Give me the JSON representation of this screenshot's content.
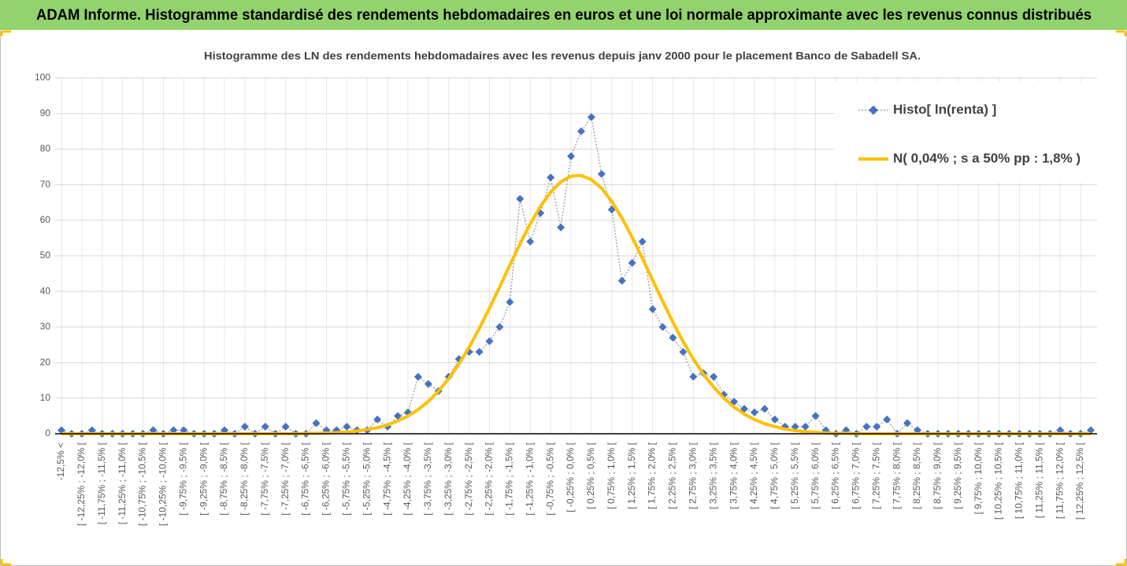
{
  "chart_data": {
    "type": "line",
    "banner": "ADAM Informe. Histogramme standardisé des rendements hebdomadaires en euros et une loi normale approximante avec les revenus connus distribués",
    "title": "Histogramme  des LN des rendements hebdomadaires avec les revenus depuis janv 2000 pour le placement Banco de Sabadell SA.",
    "categories": [
      "-12,5% <",
      null,
      "[ -12,25% ; -12,0% [",
      null,
      "[ -11,75% ; -11,5% [",
      null,
      "[ -11,25% ; -11,0% [",
      null,
      "[ -10,75% ; -10,5% [",
      null,
      "[ -10,25% ; -10,0% [",
      null,
      "[ -9,75% ; -9,5% [",
      null,
      "[ -9,25% ; -9,0% [",
      null,
      "[ -8,75% ; -8,5% [",
      null,
      "[ -8,25% ; -8,0% [",
      null,
      "[ -7,75% ; -7,5% [",
      null,
      "[ -7,25% ; -7,0% [",
      null,
      "[ -6,75% ; -6,5% [",
      null,
      "[ -6,25% ; -6,0% [",
      null,
      "[ -5,75% ; -5,5% [",
      null,
      "[ -5,25% ; -5,0% [",
      null,
      "[ -4,75% ; -4,5% [",
      null,
      "[ -4,25% ; -4,0% [",
      null,
      "[ -3,75% ; -3,5% [",
      null,
      "[ -3,25% ; -3,0% [",
      null,
      "[ -2,75% ; -2,5% [",
      null,
      "[ -2,25% ; -2,0% [",
      null,
      "[ -1,75% ; -1,5% [",
      null,
      "[ -1,25% ; -1,0% [",
      null,
      "[ -0,75% ; -0,5% [",
      null,
      "[ -0,25% ; 0,0% [",
      null,
      "[ 0,25% ; 0,5% [",
      null,
      "[ 0,75% ; 1,0% [",
      null,
      "[ 1,25% ; 1,5% [",
      null,
      "[ 1,75% ; 2,0% [",
      null,
      "[ 2,25% ; 2,5% [",
      null,
      "[ 2,75% ; 3,0% [",
      null,
      "[ 3,25% ; 3,5% [",
      null,
      "[ 3,75% ; 4,0% [",
      null,
      "[ 4,25% ; 4,5% [",
      null,
      "[ 4,75% ; 5,0% [",
      null,
      "[ 5,25% ; 5,5% [",
      null,
      "[ 5,75% ; 6,0% [",
      null,
      "[ 6,25% ; 6,5% [",
      null,
      "[ 6,75% ; 7,0% [",
      null,
      "[ 7,25% ; 7,5% [",
      null,
      "[ 7,75% ; 8,0% [",
      null,
      "[ 8,25% ; 8,5% [",
      null,
      "[ 8,75% ; 9,0% [",
      null,
      "[ 9,25% ; 9,5% [",
      null,
      "[ 9,75% ; 10,0% [",
      null,
      "[ 10,25% ; 10,5% [",
      null,
      "[ 10,75% ; 11,0% [",
      null,
      "[ 11,25% ; 11,5% [",
      null,
      "[ 11,75% ; 12,0% [",
      null,
      "[ 12,25% ; 12,5% [",
      null
    ],
    "series": [
      {
        "name": "Histo[ ln(renta) ]",
        "color": "#4472c4",
        "line_color": "#a6a6a6",
        "marker": "diamond",
        "values": [
          1,
          0,
          0,
          1,
          0,
          0,
          0,
          0,
          0,
          1,
          0,
          1,
          1,
          0,
          0,
          0,
          1,
          0,
          2,
          0,
          2,
          0,
          2,
          0,
          0,
          3,
          1,
          1,
          2,
          1,
          1,
          4,
          2,
          5,
          6,
          16,
          14,
          12,
          16,
          21,
          23,
          23,
          26,
          30,
          37,
          66,
          54,
          62,
          72,
          58,
          78,
          85,
          89,
          73,
          63,
          43,
          48,
          54,
          35,
          30,
          27,
          23,
          16,
          17,
          16,
          11,
          9,
          7,
          6,
          7,
          4,
          2,
          2,
          2,
          5,
          1,
          0,
          1,
          0,
          2,
          2,
          4,
          0,
          3,
          1,
          0,
          0,
          0,
          0,
          0,
          0,
          0,
          0,
          0,
          0,
          0,
          0,
          0,
          1,
          0,
          0,
          1
        ]
      },
      {
        "name": "N( 0,04% ; s a 50% pp : 1,8% )",
        "color": "#ffc000",
        "marker": "none",
        "values": [
          0,
          0,
          0,
          0,
          0,
          0,
          0,
          0,
          0,
          0,
          0,
          0,
          0,
          0,
          0,
          0,
          0,
          0,
          0,
          0,
          0,
          0,
          0,
          0,
          0.1,
          0.1,
          0.2,
          0.3,
          0.5,
          0.8,
          1.2,
          1.7,
          2.5,
          3.6,
          5.0,
          6.8,
          9.1,
          12.0,
          15.5,
          19.6,
          24.3,
          29.6,
          35.3,
          41.3,
          47.4,
          53.4,
          59.0,
          63.9,
          67.9,
          70.8,
          72.4,
          72.6,
          71.4,
          69.0,
          65.3,
          60.6,
          55.2,
          49.3,
          43.2,
          37.2,
          31.3,
          25.9,
          21.0,
          16.7,
          13.1,
          10.0,
          7.5,
          5.5,
          4.0,
          2.8,
          2.0,
          1.3,
          0.9,
          0.6,
          0.4,
          0.2,
          0.1,
          0.1,
          0,
          0,
          0,
          0,
          0,
          0,
          0,
          0,
          0,
          0,
          0,
          0,
          0,
          0,
          0,
          0,
          0,
          0,
          0,
          0,
          0,
          0,
          0,
          0
        ]
      }
    ],
    "ylim": [
      0,
      100
    ],
    "yticks": [
      0,
      10,
      20,
      30,
      40,
      50,
      60,
      70,
      80,
      90,
      100
    ],
    "grid": true,
    "legend": "top-right"
  }
}
